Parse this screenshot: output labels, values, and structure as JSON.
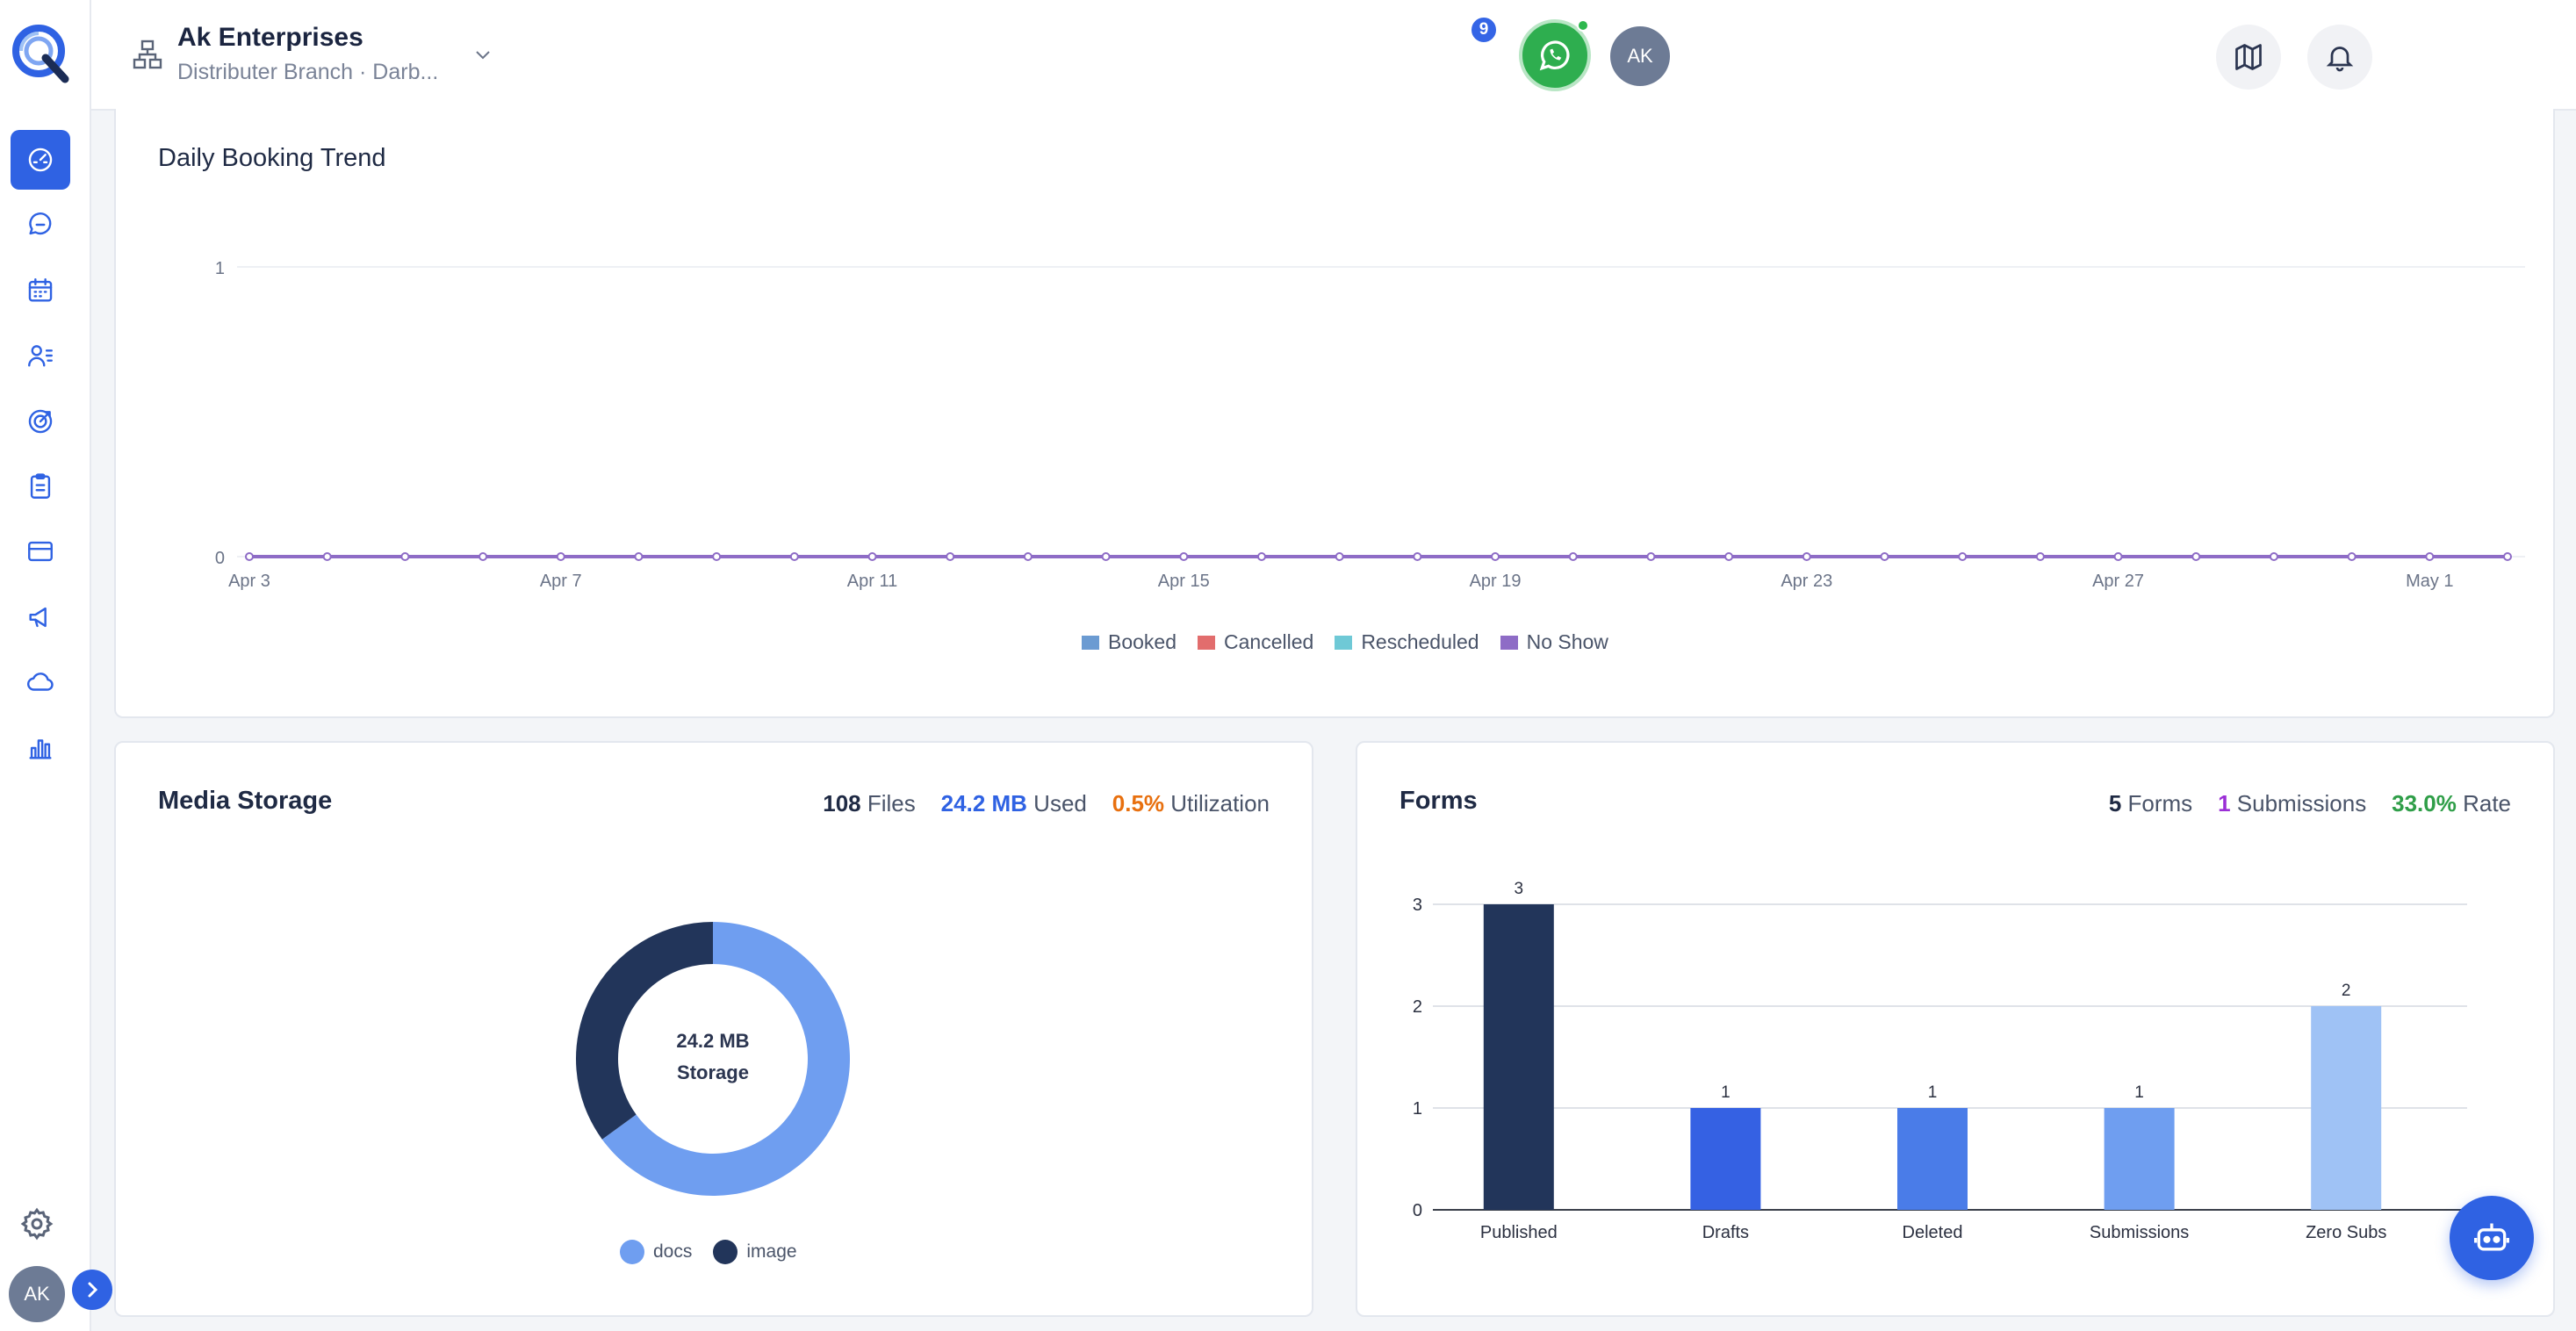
{
  "header": {
    "org_name": "Ak Enterprises",
    "org_subtitle": "Distributer Branch · Darb...",
    "notification_count": "9",
    "avatar_initials": "AK"
  },
  "sidebar": {
    "items": [
      {
        "icon": "dashboard-icon",
        "active": true
      },
      {
        "icon": "chat-icon",
        "active": false
      },
      {
        "icon": "calendar-icon",
        "active": false
      },
      {
        "icon": "contacts-icon",
        "active": false
      },
      {
        "icon": "target-icon",
        "active": false
      },
      {
        "icon": "clipboard-icon",
        "active": false
      },
      {
        "icon": "card-icon",
        "active": false
      },
      {
        "icon": "megaphone-icon",
        "active": false
      },
      {
        "icon": "cloud-icon",
        "active": false
      },
      {
        "icon": "bar-chart-icon",
        "active": false
      }
    ],
    "avatar_initials": "AK"
  },
  "trend": {
    "title": "Daily Booking Trend"
  },
  "media": {
    "title": "Media Storage",
    "files_value": "108",
    "files_label": "Files",
    "used_value": "24.2 MB",
    "used_label": "Used",
    "util_value": "0.5%",
    "util_label": "Utilization",
    "center_line1": "24.2 MB",
    "center_line2": "Storage"
  },
  "forms": {
    "title": "Forms",
    "forms_value": "5",
    "forms_label": "Forms",
    "subs_value": "1",
    "subs_label": "Submissions",
    "rate_value": "33.0%",
    "rate_label": "Rate"
  },
  "colors": {
    "booked": "#6b9bd2",
    "cancelled": "#e26d6d",
    "rescheduled": "#6fc9d6",
    "no_show": "#8e6cc6",
    "docs": "#6f9ef0",
    "image": "#22355a",
    "accent": "#2f62e3"
  },
  "chart_data": [
    {
      "type": "line",
      "title": "Daily Booking Trend",
      "x": [
        "Apr 3",
        "Apr 4",
        "Apr 5",
        "Apr 6",
        "Apr 7",
        "Apr 8",
        "Apr 9",
        "Apr 10",
        "Apr 11",
        "Apr 12",
        "Apr 13",
        "Apr 14",
        "Apr 15",
        "Apr 16",
        "Apr 17",
        "Apr 18",
        "Apr 19",
        "Apr 20",
        "Apr 21",
        "Apr 22",
        "Apr 23",
        "Apr 24",
        "Apr 25",
        "Apr 26",
        "Apr 27",
        "Apr 28",
        "Apr 29",
        "Apr 30",
        "May 1",
        "May 2"
      ],
      "x_tick_labels": [
        "Apr 3",
        "Apr 7",
        "Apr 11",
        "Apr 15",
        "Apr 19",
        "Apr 23",
        "Apr 27",
        "May 1"
      ],
      "y_tick_labels": [
        "0",
        "1"
      ],
      "ylim": [
        0,
        1
      ],
      "series": [
        {
          "name": "Booked",
          "values": [
            0,
            0,
            0,
            0,
            0,
            0,
            0,
            0,
            0,
            0,
            0,
            0,
            0,
            0,
            0,
            0,
            0,
            0,
            0,
            0,
            0,
            0,
            0,
            0,
            0,
            0,
            0,
            0,
            0,
            0
          ]
        },
        {
          "name": "Cancelled",
          "values": [
            0,
            0,
            0,
            0,
            0,
            0,
            0,
            0,
            0,
            0,
            0,
            0,
            0,
            0,
            0,
            0,
            0,
            0,
            0,
            0,
            0,
            0,
            0,
            0,
            0,
            0,
            0,
            0,
            0,
            0
          ]
        },
        {
          "name": "Rescheduled",
          "values": [
            0,
            0,
            0,
            0,
            0,
            0,
            0,
            0,
            0,
            0,
            0,
            0,
            0,
            0,
            0,
            0,
            0,
            0,
            0,
            0,
            0,
            0,
            0,
            0,
            0,
            0,
            0,
            0,
            0,
            0
          ]
        },
        {
          "name": "No Show",
          "values": [
            0,
            0,
            0,
            0,
            0,
            0,
            0,
            0,
            0,
            0,
            0,
            0,
            0,
            0,
            0,
            0,
            0,
            0,
            0,
            0,
            0,
            0,
            0,
            0,
            0,
            0,
            0,
            0,
            0,
            0
          ]
        }
      ],
      "legend": "bottom"
    },
    {
      "type": "pie",
      "title": "Media Storage",
      "categories": [
        "docs",
        "image"
      ],
      "values": [
        65,
        35
      ],
      "legend": "bottom"
    },
    {
      "type": "bar",
      "title": "Forms",
      "categories": [
        "Published",
        "Drafts",
        "Deleted",
        "Submissions",
        "Zero Subs"
      ],
      "values": [
        3,
        1,
        1,
        1,
        2
      ],
      "bar_colors": [
        "#22355a",
        "#3561e3",
        "#4a7ce8",
        "#6f9ef0",
        "#9fc2f5"
      ],
      "y_tick_labels": [
        "0",
        "1",
        "2",
        "3"
      ],
      "ylim": [
        0,
        3
      ],
      "grid": true
    }
  ]
}
